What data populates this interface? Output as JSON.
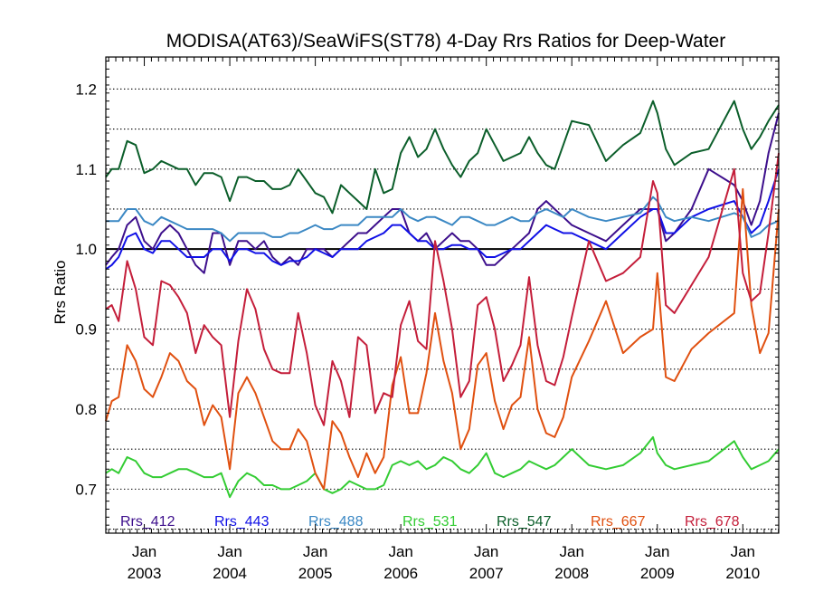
{
  "chart_data": {
    "type": "line",
    "title": "MODISA(AT63)/SeaWiFS(ST78) 4-Day Rrs Ratios for Deep-Water",
    "ylabel": "Rrs Ratio",
    "xlabel": "",
    "xlim": [
      2002.55,
      2010.42
    ],
    "ylim": [
      0.645,
      1.24
    ],
    "yticks": [
      0.7,
      0.8,
      0.9,
      1.0,
      1.1,
      1.2
    ],
    "ytick_labels": [
      "0.7",
      "0.8",
      "0.9",
      "1.0",
      "1.1",
      "1.2"
    ],
    "grid_dotted_y": [
      0.65,
      0.7,
      0.75,
      0.8,
      0.85,
      0.9,
      0.95,
      1.05,
      1.1,
      1.15,
      1.2
    ],
    "reference_line": 1.0,
    "xticks": [
      {
        "x": 2003.0,
        "line1": "Jan",
        "line2": "2003"
      },
      {
        "x": 2004.0,
        "line1": "Jan",
        "line2": "2004"
      },
      {
        "x": 2005.0,
        "line1": "Jan",
        "line2": "2005"
      },
      {
        "x": 2006.0,
        "line1": "Jan",
        "line2": "2006"
      },
      {
        "x": 2007.0,
        "line1": "Jan",
        "line2": "2007"
      },
      {
        "x": 2008.0,
        "line1": "Jan",
        "line2": "2008"
      },
      {
        "x": 2009.0,
        "line1": "Jan",
        "line2": "2009"
      },
      {
        "x": 2010.0,
        "line1": "Jan",
        "line2": "2010"
      }
    ],
    "legend_position": "bottom",
    "series": [
      {
        "name": "Rrs_412",
        "color": "#3d0f8c",
        "x": [
          2002.55,
          2002.62,
          2002.7,
          2002.8,
          2002.9,
          2003.0,
          2003.1,
          2003.2,
          2003.3,
          2003.4,
          2003.5,
          2003.6,
          2003.7,
          2003.8,
          2003.9,
          2004.0,
          2004.1,
          2004.2,
          2004.3,
          2004.4,
          2004.5,
          2004.6,
          2004.7,
          2004.8,
          2004.9,
          2005.0,
          2005.1,
          2005.2,
          2005.3,
          2005.4,
          2005.5,
          2005.6,
          2005.7,
          2005.8,
          2005.9,
          2006.0,
          2006.1,
          2006.2,
          2006.3,
          2006.4,
          2006.5,
          2006.6,
          2006.7,
          2006.8,
          2006.9,
          2007.0,
          2007.1,
          2007.2,
          2007.3,
          2007.4,
          2007.5,
          2007.6,
          2007.7,
          2007.8,
          2007.9,
          2008.0,
          2008.2,
          2008.4,
          2008.6,
          2008.8,
          2008.95,
          2009.0,
          2009.1,
          2009.2,
          2009.4,
          2009.6,
          2009.9,
          2010.0,
          2010.1,
          2010.2,
          2010.3,
          2010.42
        ],
        "y": [
          0.98,
          0.99,
          1.0,
          1.03,
          1.04,
          1.01,
          1.0,
          1.02,
          1.03,
          1.02,
          1.0,
          0.98,
          0.97,
          1.02,
          1.02,
          0.98,
          1.01,
          1.01,
          1.0,
          1.01,
          0.99,
          0.98,
          0.99,
          0.98,
          1.0,
          1.0,
          1.0,
          0.99,
          1.0,
          1.01,
          1.02,
          1.02,
          1.03,
          1.04,
          1.05,
          1.05,
          1.02,
          1.01,
          1.02,
          1.0,
          1.01,
          1.02,
          1.01,
          1.01,
          1.0,
          0.98,
          0.98,
          0.99,
          1.0,
          1.01,
          1.02,
          1.05,
          1.06,
          1.05,
          1.04,
          1.03,
          1.02,
          1.01,
          1.03,
          1.05,
          1.05,
          1.05,
          1.01,
          1.02,
          1.05,
          1.1,
          1.08,
          1.06,
          1.03,
          1.06,
          1.12,
          1.17
        ]
      },
      {
        "name": "Rrs_443",
        "color": "#1010e6",
        "x": [
          2002.55,
          2002.62,
          2002.7,
          2002.8,
          2002.9,
          2003.0,
          2003.1,
          2003.2,
          2003.3,
          2003.4,
          2003.5,
          2003.6,
          2003.7,
          2003.8,
          2003.9,
          2004.0,
          2004.1,
          2004.2,
          2004.3,
          2004.4,
          2004.5,
          2004.6,
          2004.7,
          2004.8,
          2004.9,
          2005.0,
          2005.1,
          2005.2,
          2005.3,
          2005.4,
          2005.5,
          2005.6,
          2005.7,
          2005.8,
          2005.9,
          2006.0,
          2006.1,
          2006.2,
          2006.3,
          2006.4,
          2006.5,
          2006.6,
          2006.7,
          2006.8,
          2006.9,
          2007.0,
          2007.1,
          2007.2,
          2007.3,
          2007.4,
          2007.5,
          2007.6,
          2007.7,
          2007.8,
          2007.9,
          2008.0,
          2008.2,
          2008.4,
          2008.6,
          2008.8,
          2008.95,
          2009.0,
          2009.1,
          2009.2,
          2009.4,
          2009.6,
          2009.9,
          2010.0,
          2010.1,
          2010.2,
          2010.3,
          2010.42
        ],
        "y": [
          0.975,
          0.98,
          0.99,
          1.015,
          1.02,
          1.0,
          0.995,
          1.01,
          1.01,
          1.0,
          0.99,
          0.99,
          0.99,
          1.0,
          1.0,
          0.985,
          1.0,
          1.0,
          0.995,
          0.995,
          0.985,
          0.98,
          0.985,
          0.985,
          0.99,
          1.0,
          0.995,
          0.99,
          1.0,
          1.0,
          1.0,
          1.01,
          1.015,
          1.02,
          1.03,
          1.03,
          1.02,
          1.01,
          1.01,
          1.0,
          1.0,
          1.005,
          1.005,
          1.0,
          1.0,
          0.99,
          0.99,
          0.995,
          1.0,
          1.0,
          1.01,
          1.02,
          1.03,
          1.025,
          1.02,
          1.02,
          1.01,
          1.0,
          1.02,
          1.04,
          1.05,
          1.05,
          1.02,
          1.02,
          1.04,
          1.05,
          1.06,
          1.04,
          1.02,
          1.03,
          1.06,
          1.1
        ]
      },
      {
        "name": "Rrs_488",
        "color": "#3b88c4",
        "x": [
          2002.55,
          2002.62,
          2002.7,
          2002.8,
          2002.9,
          2003.0,
          2003.1,
          2003.2,
          2003.3,
          2003.4,
          2003.5,
          2003.6,
          2003.7,
          2003.8,
          2003.9,
          2004.0,
          2004.1,
          2004.2,
          2004.3,
          2004.4,
          2004.5,
          2004.6,
          2004.7,
          2004.8,
          2004.9,
          2005.0,
          2005.1,
          2005.2,
          2005.3,
          2005.4,
          2005.5,
          2005.6,
          2005.7,
          2005.8,
          2005.9,
          2006.0,
          2006.1,
          2006.2,
          2006.3,
          2006.4,
          2006.5,
          2006.6,
          2006.7,
          2006.8,
          2006.9,
          2007.0,
          2007.1,
          2007.2,
          2007.3,
          2007.4,
          2007.5,
          2007.6,
          2007.7,
          2007.8,
          2007.9,
          2008.0,
          2008.2,
          2008.4,
          2008.6,
          2008.8,
          2008.95,
          2009.0,
          2009.1,
          2009.2,
          2009.4,
          2009.6,
          2009.9,
          2010.0,
          2010.1,
          2010.2,
          2010.3,
          2010.42
        ],
        "y": [
          1.035,
          1.035,
          1.035,
          1.05,
          1.05,
          1.035,
          1.03,
          1.04,
          1.035,
          1.03,
          1.025,
          1.025,
          1.025,
          1.025,
          1.02,
          1.01,
          1.02,
          1.02,
          1.02,
          1.02,
          1.015,
          1.015,
          1.02,
          1.02,
          1.025,
          1.03,
          1.025,
          1.025,
          1.03,
          1.03,
          1.03,
          1.04,
          1.04,
          1.04,
          1.04,
          1.05,
          1.04,
          1.035,
          1.04,
          1.04,
          1.035,
          1.03,
          1.04,
          1.04,
          1.035,
          1.03,
          1.03,
          1.035,
          1.04,
          1.035,
          1.035,
          1.045,
          1.05,
          1.045,
          1.04,
          1.05,
          1.04,
          1.035,
          1.04,
          1.045,
          1.065,
          1.06,
          1.04,
          1.035,
          1.04,
          1.035,
          1.045,
          1.04,
          1.015,
          1.02,
          1.03,
          1.035
        ]
      },
      {
        "name": "Rrs_531",
        "color": "#33cc33",
        "x": [
          2002.55,
          2002.62,
          2002.7,
          2002.8,
          2002.9,
          2003.0,
          2003.1,
          2003.2,
          2003.3,
          2003.4,
          2003.5,
          2003.6,
          2003.7,
          2003.8,
          2003.9,
          2004.0,
          2004.1,
          2004.2,
          2004.3,
          2004.4,
          2004.5,
          2004.6,
          2004.7,
          2004.8,
          2004.9,
          2005.0,
          2005.1,
          2005.2,
          2005.3,
          2005.4,
          2005.5,
          2005.6,
          2005.7,
          2005.8,
          2005.9,
          2006.0,
          2006.1,
          2006.2,
          2006.3,
          2006.4,
          2006.5,
          2006.6,
          2006.7,
          2006.8,
          2006.9,
          2007.0,
          2007.1,
          2007.2,
          2007.3,
          2007.4,
          2007.5,
          2007.6,
          2007.7,
          2007.8,
          2007.9,
          2008.0,
          2008.2,
          2008.4,
          2008.6,
          2008.8,
          2008.95,
          2009.0,
          2009.1,
          2009.2,
          2009.4,
          2009.6,
          2009.9,
          2010.0,
          2010.1,
          2010.2,
          2010.3,
          2010.42
        ],
        "y": [
          0.72,
          0.725,
          0.72,
          0.74,
          0.735,
          0.72,
          0.715,
          0.715,
          0.72,
          0.725,
          0.725,
          0.72,
          0.715,
          0.715,
          0.72,
          0.69,
          0.71,
          0.72,
          0.715,
          0.705,
          0.705,
          0.7,
          0.7,
          0.705,
          0.71,
          0.72,
          0.7,
          0.695,
          0.7,
          0.71,
          0.705,
          0.7,
          0.7,
          0.705,
          0.73,
          0.735,
          0.73,
          0.735,
          0.725,
          0.73,
          0.74,
          0.735,
          0.725,
          0.72,
          0.73,
          0.745,
          0.72,
          0.715,
          0.72,
          0.725,
          0.735,
          0.73,
          0.725,
          0.73,
          0.74,
          0.75,
          0.73,
          0.725,
          0.73,
          0.745,
          0.765,
          0.745,
          0.73,
          0.725,
          0.73,
          0.735,
          0.76,
          0.74,
          0.725,
          0.73,
          0.735,
          0.75
        ]
      },
      {
        "name": "Rrs_547",
        "color": "#0b5e2a",
        "x": [
          2002.55,
          2002.62,
          2002.7,
          2002.8,
          2002.9,
          2003.0,
          2003.1,
          2003.2,
          2003.3,
          2003.4,
          2003.5,
          2003.6,
          2003.7,
          2003.8,
          2003.9,
          2004.0,
          2004.1,
          2004.2,
          2004.3,
          2004.4,
          2004.5,
          2004.6,
          2004.7,
          2004.8,
          2004.9,
          2005.0,
          2005.1,
          2005.2,
          2005.3,
          2005.4,
          2005.5,
          2005.6,
          2005.7,
          2005.8,
          2005.9,
          2006.0,
          2006.1,
          2006.2,
          2006.3,
          2006.4,
          2006.5,
          2006.6,
          2006.7,
          2006.8,
          2006.9,
          2007.0,
          2007.1,
          2007.2,
          2007.3,
          2007.4,
          2007.5,
          2007.6,
          2007.7,
          2007.8,
          2007.9,
          2008.0,
          2008.2,
          2008.4,
          2008.6,
          2008.8,
          2008.95,
          2009.0,
          2009.1,
          2009.2,
          2009.4,
          2009.6,
          2009.9,
          2010.0,
          2010.1,
          2010.2,
          2010.3,
          2010.42
        ],
        "y": [
          1.09,
          1.1,
          1.1,
          1.135,
          1.13,
          1.095,
          1.1,
          1.11,
          1.105,
          1.1,
          1.1,
          1.08,
          1.095,
          1.095,
          1.09,
          1.06,
          1.09,
          1.09,
          1.085,
          1.085,
          1.075,
          1.075,
          1.08,
          1.1,
          1.085,
          1.07,
          1.065,
          1.045,
          1.08,
          1.07,
          1.06,
          1.05,
          1.1,
          1.07,
          1.075,
          1.12,
          1.14,
          1.115,
          1.125,
          1.15,
          1.125,
          1.105,
          1.09,
          1.11,
          1.12,
          1.15,
          1.13,
          1.11,
          1.115,
          1.12,
          1.14,
          1.12,
          1.105,
          1.1,
          1.13,
          1.16,
          1.155,
          1.11,
          1.13,
          1.145,
          1.185,
          1.17,
          1.125,
          1.105,
          1.12,
          1.125,
          1.185,
          1.15,
          1.125,
          1.14,
          1.16,
          1.18
        ]
      },
      {
        "name": "Rrs_667",
        "color": "#e05010",
        "x": [
          2002.55,
          2002.62,
          2002.7,
          2002.8,
          2002.9,
          2003.0,
          2003.1,
          2003.2,
          2003.3,
          2003.4,
          2003.5,
          2003.6,
          2003.7,
          2003.8,
          2003.9,
          2004.0,
          2004.1,
          2004.2,
          2004.3,
          2004.4,
          2004.5,
          2004.6,
          2004.7,
          2004.8,
          2004.9,
          2005.0,
          2005.1,
          2005.2,
          2005.3,
          2005.4,
          2005.5,
          2005.6,
          2005.7,
          2005.8,
          2005.9,
          2006.0,
          2006.1,
          2006.2,
          2006.3,
          2006.4,
          2006.5,
          2006.6,
          2006.7,
          2006.8,
          2006.9,
          2007.0,
          2007.1,
          2007.2,
          2007.3,
          2007.4,
          2007.5,
          2007.6,
          2007.7,
          2007.8,
          2007.9,
          2008.0,
          2008.2,
          2008.4,
          2008.6,
          2008.8,
          2008.95,
          2009.0,
          2009.1,
          2009.2,
          2009.4,
          2009.6,
          2009.9,
          2010.0,
          2010.1,
          2010.2,
          2010.3,
          2010.42
        ],
        "y": [
          0.785,
          0.81,
          0.815,
          0.88,
          0.86,
          0.825,
          0.815,
          0.84,
          0.87,
          0.86,
          0.835,
          0.825,
          0.78,
          0.805,
          0.79,
          0.725,
          0.82,
          0.84,
          0.82,
          0.79,
          0.76,
          0.75,
          0.75,
          0.775,
          0.76,
          0.72,
          0.7,
          0.785,
          0.77,
          0.74,
          0.715,
          0.745,
          0.72,
          0.74,
          0.83,
          0.865,
          0.795,
          0.795,
          0.845,
          0.92,
          0.86,
          0.82,
          0.75,
          0.775,
          0.855,
          0.87,
          0.81,
          0.775,
          0.805,
          0.815,
          0.89,
          0.8,
          0.77,
          0.765,
          0.79,
          0.84,
          0.885,
          0.935,
          0.87,
          0.89,
          0.9,
          0.97,
          0.84,
          0.835,
          0.875,
          0.895,
          0.92,
          1.075,
          0.93,
          0.87,
          0.895,
          1.05
        ]
      },
      {
        "name": "Rrs_678",
        "color": "#c41e3a",
        "x": [
          2002.55,
          2002.62,
          2002.7,
          2002.8,
          2002.9,
          2003.0,
          2003.1,
          2003.2,
          2003.3,
          2003.4,
          2003.5,
          2003.6,
          2003.7,
          2003.8,
          2003.9,
          2004.0,
          2004.1,
          2004.2,
          2004.3,
          2004.4,
          2004.5,
          2004.6,
          2004.7,
          2004.8,
          2004.9,
          2005.0,
          2005.1,
          2005.2,
          2005.3,
          2005.4,
          2005.5,
          2005.6,
          2005.7,
          2005.8,
          2005.9,
          2006.0,
          2006.1,
          2006.2,
          2006.3,
          2006.4,
          2006.5,
          2006.6,
          2006.7,
          2006.8,
          2006.9,
          2007.0,
          2007.1,
          2007.2,
          2007.3,
          2007.4,
          2007.5,
          2007.6,
          2007.7,
          2007.8,
          2007.9,
          2008.0,
          2008.2,
          2008.4,
          2008.6,
          2008.8,
          2008.95,
          2009.0,
          2009.1,
          2009.2,
          2009.4,
          2009.6,
          2009.9,
          2010.0,
          2010.1,
          2010.2,
          2010.3,
          2010.42
        ],
        "y": [
          0.925,
          0.93,
          0.91,
          0.985,
          0.95,
          0.89,
          0.88,
          0.96,
          0.955,
          0.94,
          0.92,
          0.87,
          0.905,
          0.89,
          0.88,
          0.79,
          0.885,
          0.95,
          0.925,
          0.875,
          0.85,
          0.845,
          0.845,
          0.92,
          0.87,
          0.805,
          0.78,
          0.86,
          0.835,
          0.79,
          0.89,
          0.88,
          0.795,
          0.82,
          0.815,
          0.905,
          0.935,
          0.885,
          0.875,
          1.01,
          0.96,
          0.9,
          0.815,
          0.835,
          0.93,
          0.94,
          0.9,
          0.835,
          0.855,
          0.88,
          0.965,
          0.88,
          0.835,
          0.83,
          0.865,
          0.915,
          1.01,
          0.96,
          0.97,
          0.99,
          1.085,
          1.07,
          0.93,
          0.92,
          0.955,
          0.99,
          1.1,
          0.97,
          0.935,
          0.945,
          1.02,
          1.12
        ]
      }
    ]
  }
}
